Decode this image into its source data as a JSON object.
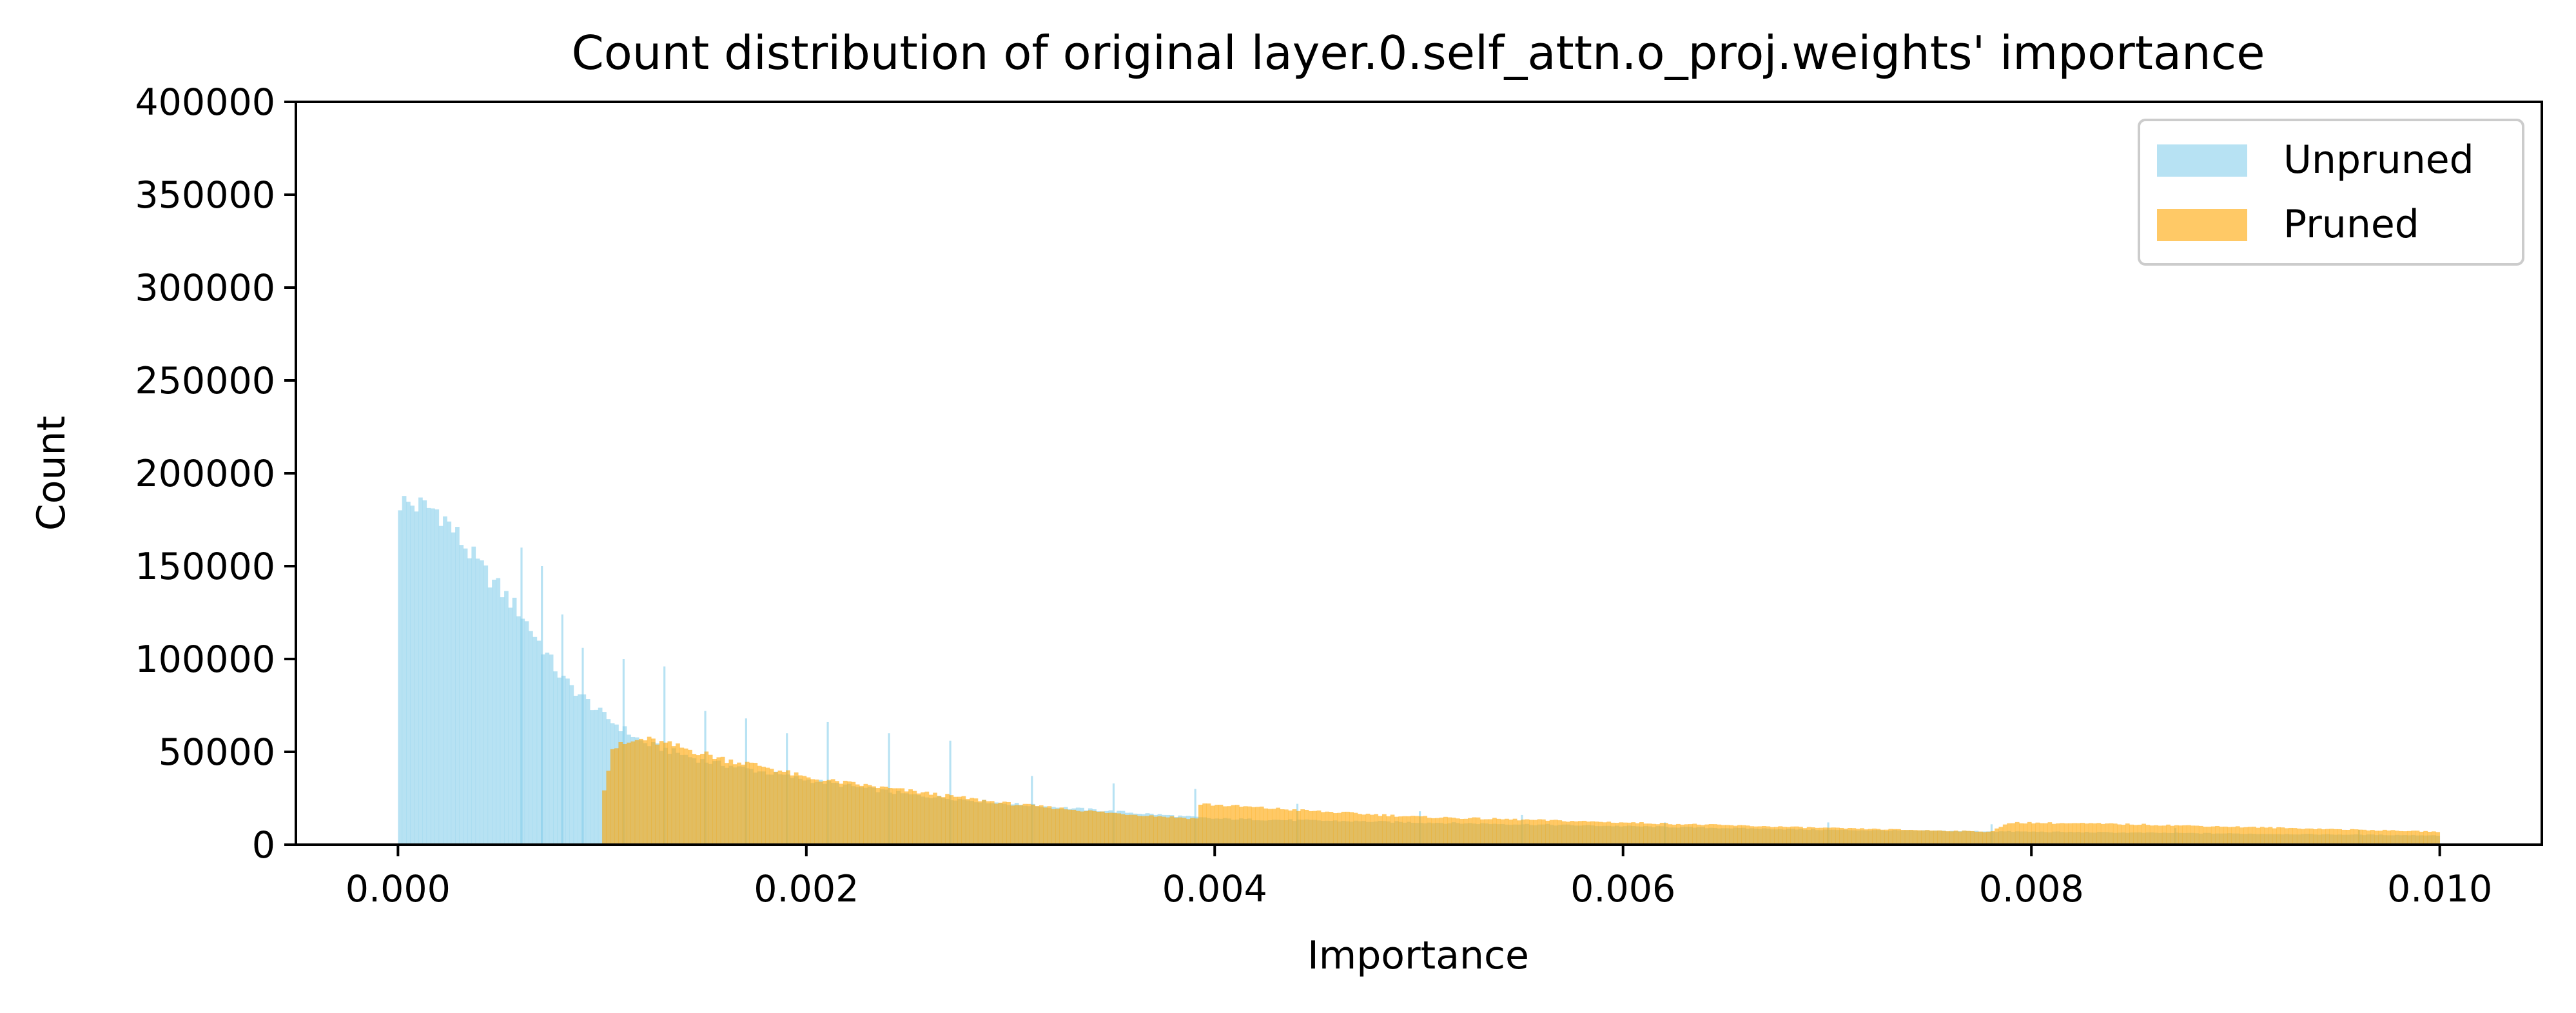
{
  "chart_data": {
    "type": "histogram",
    "title": "Count distribution of original layer.0.self_attn.o_proj.weights' importance",
    "xlabel": "Importance",
    "ylabel": "Count",
    "xlim": [
      -0.0005,
      0.0105
    ],
    "ylim": [
      0,
      400000
    ],
    "x_ticks": [
      "0.000",
      "0.002",
      "0.004",
      "0.006",
      "0.008",
      "0.010"
    ],
    "y_ticks": [
      "0",
      "50000",
      "100000",
      "150000",
      "200000",
      "250000",
      "300000",
      "350000",
      "400000"
    ],
    "grid": false,
    "legend_position": "top-right",
    "bin_width": 2e-05,
    "series": [
      {
        "name": "Unpruned",
        "color": "#87ceeb",
        "alpha": 0.6,
        "range": [
          0.0,
          0.01
        ],
        "profile": [
          [
            0.0,
            185000
          ],
          [
            0.0002,
            180000
          ],
          [
            0.0004,
            150000
          ],
          [
            0.0006,
            125000
          ],
          [
            0.0008,
            90000
          ],
          [
            0.001,
            70000
          ],
          [
            0.0012,
            55000
          ],
          [
            0.0015,
            45000
          ],
          [
            0.002,
            35000
          ],
          [
            0.0025,
            27000
          ],
          [
            0.003,
            22000
          ],
          [
            0.0035,
            18000
          ],
          [
            0.004,
            14000
          ],
          [
            0.005,
            12000
          ],
          [
            0.006,
            10000
          ],
          [
            0.007,
            8000
          ],
          [
            0.008,
            7000
          ],
          [
            0.01,
            5000
          ]
        ],
        "spikes": [
          [
            0.0006,
            160000
          ],
          [
            0.0007,
            150000
          ],
          [
            0.0008,
            124000
          ],
          [
            0.0009,
            106000
          ],
          [
            0.0011,
            100000
          ],
          [
            0.0013,
            96000
          ],
          [
            0.0015,
            72000
          ],
          [
            0.0017,
            68000
          ],
          [
            0.0019,
            60000
          ],
          [
            0.0021,
            66000
          ],
          [
            0.0024,
            60000
          ],
          [
            0.0027,
            56000
          ],
          [
            0.0031,
            37000
          ],
          [
            0.0035,
            33000
          ],
          [
            0.0039,
            30000
          ],
          [
            0.0044,
            22000
          ],
          [
            0.005,
            18000
          ],
          [
            0.0055,
            16000
          ],
          [
            0.0062,
            12000
          ],
          [
            0.007,
            12000
          ],
          [
            0.0078,
            11000
          ],
          [
            0.0087,
            9000
          ],
          [
            0.0096,
            8000
          ]
        ]
      },
      {
        "name": "Pruned",
        "color": "#ffa500",
        "alpha": 0.6,
        "range": [
          0.001,
          0.01
        ],
        "profile": [
          [
            0.001,
            25000
          ],
          [
            0.00105,
            52000
          ],
          [
            0.0012,
            57000
          ],
          [
            0.0014,
            52000
          ],
          [
            0.0016,
            46000
          ],
          [
            0.0018,
            42000
          ],
          [
            0.002,
            36000
          ],
          [
            0.0025,
            29000
          ],
          [
            0.003,
            22000
          ],
          [
            0.0035,
            17000
          ],
          [
            0.00392,
            14000
          ],
          [
            0.00393,
            22000
          ],
          [
            0.0045,
            18000
          ],
          [
            0.005,
            15000
          ],
          [
            0.006,
            12000
          ],
          [
            0.007,
            9000
          ],
          [
            0.0078,
            7000
          ],
          [
            0.0079,
            12000
          ],
          [
            0.0085,
            11000
          ],
          [
            0.01,
            7000
          ]
        ]
      }
    ]
  }
}
